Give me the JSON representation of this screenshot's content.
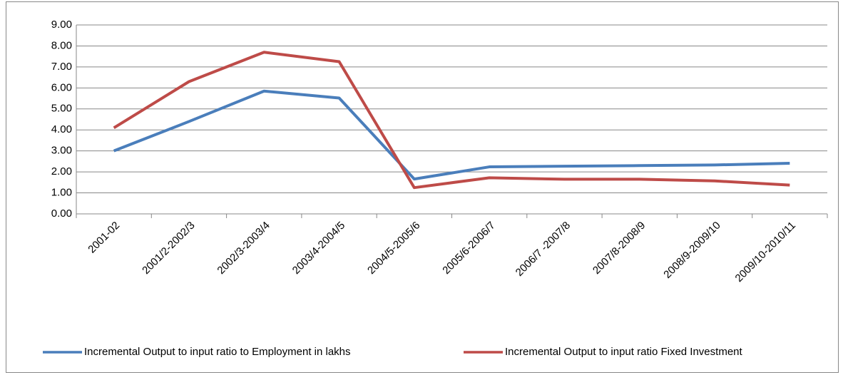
{
  "chart_data": {
    "type": "line",
    "categories": [
      "2001-02",
      "2001/2-2002/3",
      "2002/3-2003/4",
      "2003/4-2004/5",
      "2004/5-2005/6",
      "2005/6-2006/7",
      "2006/7 -2007/8",
      "2007/8-2008/9",
      "2008/9-2009/10",
      "2009/10-2010/11"
    ],
    "series": [
      {
        "name": "Incremental Output to input ratio  to Employment in lakhs",
        "color": "#4a7ebb",
        "values": [
          3.0,
          4.4,
          5.85,
          5.52,
          1.66,
          2.24,
          2.27,
          2.3,
          2.33,
          2.41
        ]
      },
      {
        "name": "Incremental Output to input ratio  Fixed Investment",
        "color": "#be4b48",
        "values": [
          4.1,
          6.3,
          7.7,
          7.25,
          1.25,
          1.72,
          1.65,
          1.65,
          1.57,
          1.37
        ]
      }
    ],
    "ylim": [
      0,
      9
    ],
    "yticks": [
      {
        "value": 0,
        "label": "0.00"
      },
      {
        "value": 1,
        "label": "1.00"
      },
      {
        "value": 2,
        "label": "2.00"
      },
      {
        "value": 3,
        "label": "3.00"
      },
      {
        "value": 4,
        "label": "4.00"
      },
      {
        "value": 5,
        "label": "5.00"
      },
      {
        "value": 6,
        "label": "6.00"
      },
      {
        "value": 7,
        "label": "7.00"
      },
      {
        "value": 8,
        "label": "8.00"
      },
      {
        "value": 9,
        "label": "9.00"
      }
    ],
    "grid": true,
    "legend": "bottom"
  }
}
